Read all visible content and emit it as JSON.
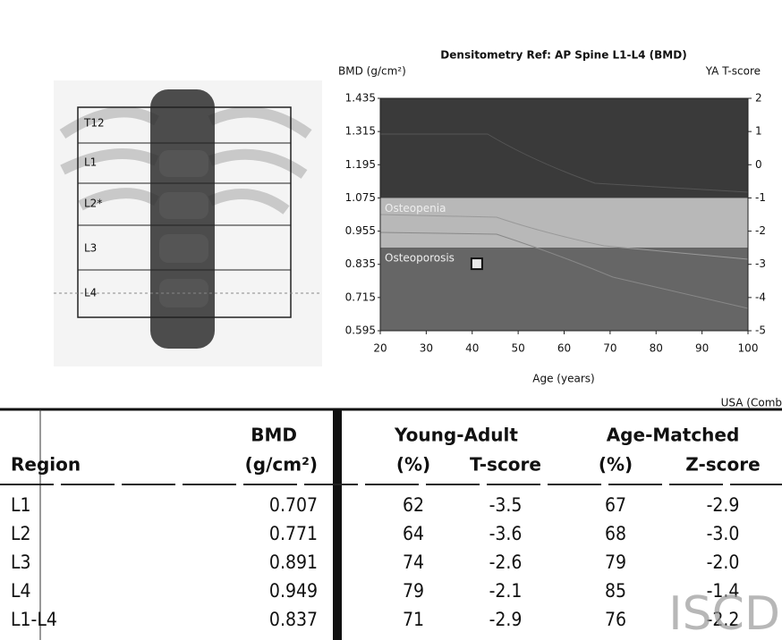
{
  "chart_data": {
    "type": "scatter",
    "title": "Densitometry Ref: AP Spine L1-L4 (BMD)",
    "y_label": "BMD (g/cm²)",
    "y2_label": "YA T-score",
    "x_label": "Age (years)",
    "footer": "USA (Comb",
    "x": [
      41
    ],
    "values": [
      0.837
    ],
    "color": "#e8e8e8",
    "xlim": [
      20,
      100
    ],
    "xticks": [
      20,
      30,
      40,
      50,
      60,
      70,
      80,
      90,
      100
    ],
    "ylim": [
      0.595,
      1.435
    ],
    "yticks": [
      1.435,
      1.315,
      1.195,
      1.075,
      0.955,
      0.835,
      0.715,
      0.595
    ],
    "y2lim": [
      -5,
      2
    ],
    "y2ticks": [
      2,
      1,
      0,
      -1,
      -2,
      -3,
      -4,
      -5
    ],
    "bands": [
      {
        "label": "Osteopenia",
        "from": -2.5,
        "to": -1,
        "color": "#b8b8b8"
      },
      {
        "label": "Osteoporosis",
        "from": -5,
        "to": -2.5,
        "color": "#666666"
      }
    ],
    "background": "#3a3a3a"
  },
  "image": {
    "labels": [
      "T12",
      "L1",
      "L2*",
      "L3",
      "L4"
    ]
  },
  "table": {
    "group_headers": [
      "BMD",
      "Young-Adult",
      "Age-Matched"
    ],
    "headers": [
      "Region",
      "(g/cm²)",
      "(%)",
      "T-score",
      "(%)",
      "Z-score"
    ],
    "rows": [
      [
        "L1",
        "0.707",
        "62",
        "-3.5",
        "67",
        "-2.9"
      ],
      [
        "L2",
        "0.771",
        "64",
        "-3.6",
        "68",
        "-3.0"
      ],
      [
        "L3",
        "0.891",
        "74",
        "-2.6",
        "79",
        "-2.0"
      ],
      [
        "L4",
        "0.949",
        "79",
        "-2.1",
        "85",
        "-1.4"
      ],
      [
        "L1-L4",
        "0.837",
        "71",
        "-2.9",
        "76",
        "-2.2"
      ]
    ]
  },
  "watermark": "ISCD"
}
